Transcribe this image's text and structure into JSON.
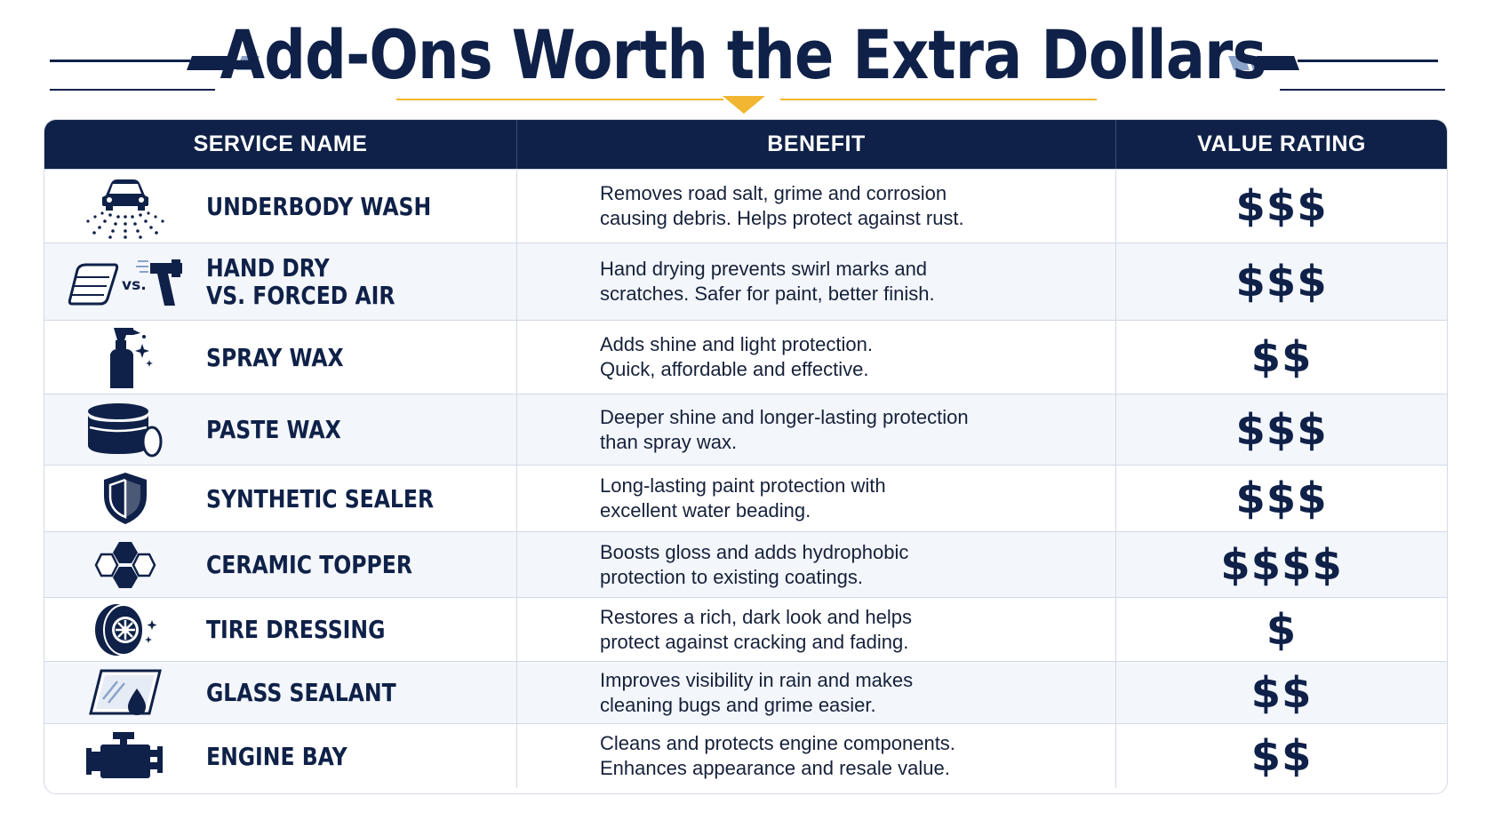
{
  "title": "Add-Ons Worth the Extra Dollars",
  "colors": {
    "navy": "#0f2148",
    "accent_gold": "#f2b632",
    "accent_blue": "#8aa3c8",
    "alt_row": "#f3f6fb"
  },
  "table": {
    "headers": {
      "service": "SERVICE NAME",
      "benefit": "BENEFIT",
      "rating": "VALUE RATING"
    },
    "rows": [
      {
        "icon": "car-underbody-spray-icon",
        "name": [
          "UNDERBODY WASH"
        ],
        "benefit": [
          "Removes road salt, grime and corrosion",
          "causing debris. Helps protect against rust."
        ],
        "rating": "$$$"
      },
      {
        "icon": "towel-vs-air-blower-icon",
        "icon_text": "vs.",
        "name": [
          "HAND DRY",
          "VS. FORCED AIR"
        ],
        "benefit": [
          "Hand drying prevents swirl marks and",
          "scratches. Safer for paint, better finish."
        ],
        "rating": "$$$"
      },
      {
        "icon": "spray-bottle-icon",
        "name": [
          "SPRAY WAX"
        ],
        "benefit": [
          "Adds shine and light protection.",
          "Quick, affordable and effective."
        ],
        "rating": "$$"
      },
      {
        "icon": "paste-wax-tin-icon",
        "name": [
          "PASTE WAX"
        ],
        "benefit": [
          "Deeper shine and longer-lasting protection",
          "than spray wax."
        ],
        "rating": "$$$"
      },
      {
        "icon": "shield-icon",
        "name": [
          "SYNTHETIC SEALER"
        ],
        "benefit": [
          "Long-lasting paint protection with",
          "excellent water beading."
        ],
        "rating": "$$$"
      },
      {
        "icon": "hexagon-molecule-icon",
        "name": [
          "CERAMIC TOPPER"
        ],
        "benefit": [
          "Boosts gloss and adds hydrophobic",
          "protection to existing coatings."
        ],
        "rating": "$$$$"
      },
      {
        "icon": "tire-icon",
        "name": [
          "TIRE DRESSING"
        ],
        "benefit": [
          "Restores a rich, dark look and helps",
          "protect against cracking and fading."
        ],
        "rating": "$"
      },
      {
        "icon": "windshield-drop-icon",
        "name": [
          "GLASS SEALANT"
        ],
        "benefit": [
          "Improves visibility in rain and makes",
          "cleaning bugs and grime easier."
        ],
        "rating": "$$"
      },
      {
        "icon": "engine-icon",
        "name": [
          "ENGINE BAY"
        ],
        "benefit": [
          "Cleans and protects engine components.",
          "Enhances appearance and resale value."
        ],
        "rating": "$$"
      }
    ]
  }
}
